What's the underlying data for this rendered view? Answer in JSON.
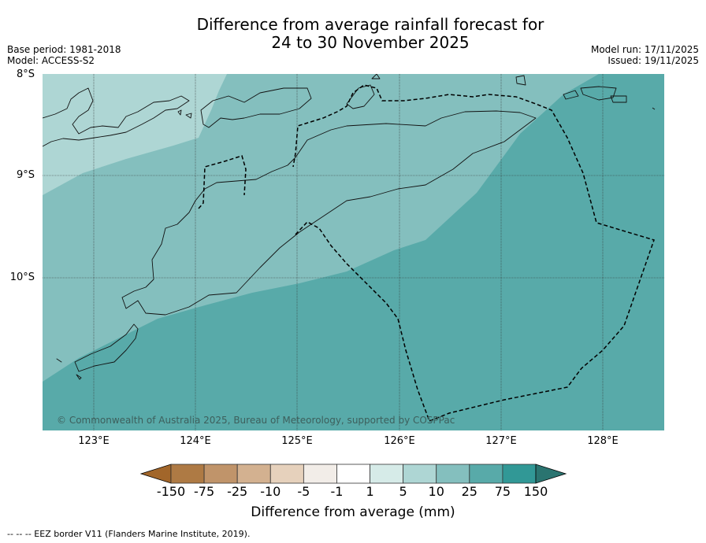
{
  "title": {
    "line1": "Difference from average rainfall forecast for",
    "line2": "24 to 30 November 2025"
  },
  "meta": {
    "base_period": "Base period: 1981-2018",
    "model": "Model: ACCESS-S2",
    "model_run": "Model run: 17/11/2025",
    "issued": "Issued: 19/11/2025"
  },
  "map": {
    "latitude_labels": [
      "8°S",
      "9°S",
      "10°S"
    ],
    "longitude_labels": [
      "123°E",
      "124°E",
      "125°E",
      "126°E",
      "127°E",
      "128°E"
    ],
    "copyright": "© Commonwealth of Australia 2025, Bureau of Meteorology, supported by COSPPac"
  },
  "colorbar": {
    "ticks": [
      "-150",
      "-75",
      "-25",
      "-10",
      "-5",
      "-1",
      "1",
      "5",
      "10",
      "25",
      "75",
      "150"
    ],
    "colors": [
      "#a2662a",
      "#ae7a44",
      "#c0946a",
      "#d3b190",
      "#e6d1bc",
      "#f2ede8",
      "#ffffff",
      "#d6ebe8",
      "#aed6d4",
      "#84bfbe",
      "#58aaa9",
      "#319896",
      "#2a7470"
    ],
    "label": "Difference from average (mm)"
  },
  "footer": "-- -- -- EEZ border V11 (Flanders Marine Institute, 2019)."
}
